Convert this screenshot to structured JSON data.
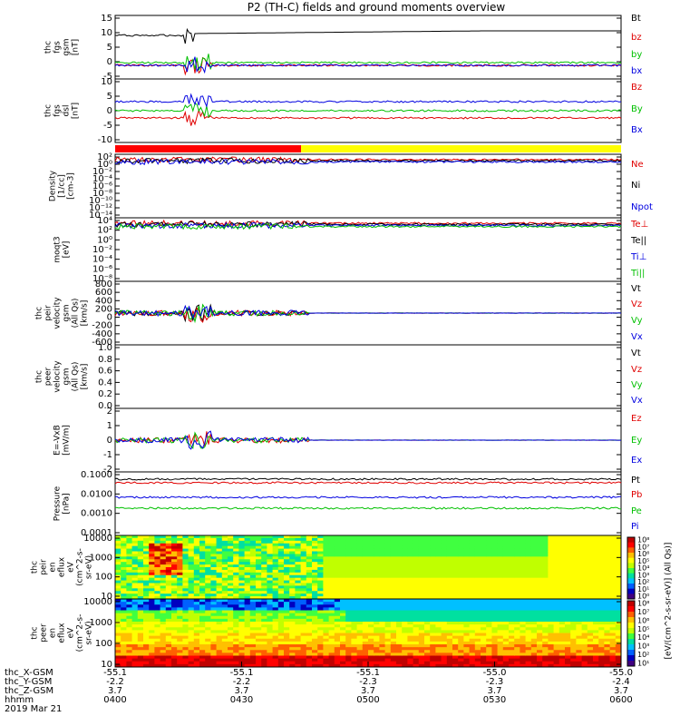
{
  "title": "P2 (TH-C) fields and ground moments overview",
  "chart_data": [
    {
      "type": "line",
      "panel": "fgs-gsm",
      "ylabel_lines": [
        "thc",
        "fgs",
        "gsm",
        "[nT]"
      ],
      "yticks": [
        "15",
        "10",
        "5",
        "0",
        "-5"
      ],
      "ylim": [
        -8,
        16
      ],
      "legend": [
        {
          "name": "Bt",
          "color": "#000000"
        },
        {
          "name": "bz",
          "color": "#e00000"
        },
        {
          "name": "by",
          "color": "#00c000"
        },
        {
          "name": "bx",
          "color": "#0000e0"
        }
      ]
    },
    {
      "type": "line",
      "panel": "fgs-dsl",
      "ylabel_lines": [
        "thc",
        "fgs",
        "dsl",
        "[nT]"
      ],
      "yticks": [
        "10",
        "5",
        "0",
        "-5",
        "-10"
      ],
      "ylim": [
        -12,
        10
      ],
      "legend": [
        {
          "name": "Bz",
          "color": "#e00000"
        },
        {
          "name": "By",
          "color": "#00c000"
        },
        {
          "name": "Bx",
          "color": "#0000e0"
        }
      ]
    },
    {
      "type": "line",
      "panel": "density",
      "ylabel_lines": [
        "Density",
        "[1/cc]",
        "[cm-3]"
      ],
      "yticks": [
        "10²",
        "10⁰",
        "10⁻²",
        "10⁻⁴",
        "10⁻⁶",
        "10⁻⁸",
        "10⁻¹⁰",
        "10⁻¹²",
        "10⁻¹⁴"
      ],
      "legend": [
        {
          "name": "Ne",
          "color": "#e00000"
        },
        {
          "name": "Ni",
          "color": "#000000"
        },
        {
          "name": "Npot",
          "color": "#0000e0"
        }
      ]
    },
    {
      "type": "line",
      "panel": "temperature",
      "ylabel_lines": [
        "moqt3",
        "[eV]"
      ],
      "yticks": [
        "10⁴",
        "10²",
        "10⁰",
        "10⁻²",
        "10⁻⁴",
        "10⁻⁶",
        "10⁻⁸"
      ],
      "legend": [
        {
          "name": "Te⊥",
          "color": "#e00000"
        },
        {
          "name": "Te||",
          "color": "#000000"
        },
        {
          "name": "Ti⊥",
          "color": "#0000e0"
        },
        {
          "name": "Ti||",
          "color": "#00c000"
        }
      ]
    },
    {
      "type": "line",
      "panel": "peir-velocity",
      "ylabel_lines": [
        "thc",
        "peir",
        "velocity",
        "gsm",
        "(All Qs)",
        "[km/s]"
      ],
      "yticks": [
        "800",
        "600",
        "400",
        "200",
        "0",
        "-200",
        "-400",
        "-600"
      ],
      "ylim": [
        -600,
        800
      ],
      "legend": [
        {
          "name": "Vt",
          "color": "#000000"
        },
        {
          "name": "Vz",
          "color": "#e00000"
        },
        {
          "name": "Vy",
          "color": "#00c000"
        },
        {
          "name": "Vx",
          "color": "#0000e0"
        }
      ]
    },
    {
      "type": "line",
      "panel": "peer-velocity",
      "ylabel_lines": [
        "thc",
        "peer",
        "velocity",
        "gsm",
        "(All Qs)",
        "[km/s]"
      ],
      "yticks": [
        "1.0",
        "0.8",
        "0.6",
        "0.4",
        "0.2",
        "0.0"
      ],
      "ylim": [
        0,
        1
      ],
      "legend": [
        {
          "name": "Vt",
          "color": "#000000"
        },
        {
          "name": "Vz",
          "color": "#e00000"
        },
        {
          "name": "Vy",
          "color": "#00c000"
        },
        {
          "name": "Vx",
          "color": "#0000e0"
        }
      ]
    },
    {
      "type": "line",
      "panel": "efield",
      "ylabel_lines": [
        "E=-VxB",
        "[mV/m]"
      ],
      "yticks": [
        "2",
        "1",
        "0",
        "-1",
        "-2"
      ],
      "ylim": [
        -2,
        2
      ],
      "legend": [
        {
          "name": "Ez",
          "color": "#e00000"
        },
        {
          "name": "Ey",
          "color": "#00c000"
        },
        {
          "name": "Ex",
          "color": "#0000e0"
        }
      ]
    },
    {
      "type": "line",
      "panel": "pressure",
      "ylabel_lines": [
        "Pressure",
        "[nPa]"
      ],
      "yticks": [
        "0.1000",
        "0.0100",
        "0.0010",
        "0.0001"
      ],
      "legend": [
        {
          "name": "Pt",
          "color": "#000000"
        },
        {
          "name": "Pb",
          "color": "#e00000"
        },
        {
          "name": "Pe",
          "color": "#00c000"
        },
        {
          "name": "Pi",
          "color": "#0000e0"
        }
      ]
    },
    {
      "type": "heatmap",
      "panel": "peir-eflux",
      "ylabel_lines": [
        "thc",
        "peir",
        "en",
        "eflux",
        "eV",
        "(cm^2-s-",
        "sr-eV)"
      ],
      "yticks": [
        "10000",
        "1000",
        "100",
        "10"
      ]
    },
    {
      "type": "heatmap",
      "panel": "peer-eflux",
      "ylabel_lines": [
        "thc",
        "peer",
        "en",
        "eflux",
        "eV",
        "(cm^2-s-",
        "sr-eV)"
      ],
      "yticks": [
        "10000",
        "1000",
        "100",
        "10"
      ]
    }
  ],
  "colorbar": {
    "upper_ticks": [
      "10⁸",
      "10⁷",
      "10⁶",
      "10⁵",
      "10⁴",
      "10³",
      "10²",
      "10¹",
      "10⁰"
    ],
    "lower_ticks": [
      "10⁸",
      "10⁷",
      "10⁶",
      "10⁵",
      "10⁴",
      "10³",
      "10²",
      "10¹"
    ],
    "label": "[eV/(cm^2-s-sr-eV)] (All Qs)]"
  },
  "xaxis": {
    "row_labels": [
      "thc_X-GSM",
      "thc_Y-GSM",
      "thc_Z-GSM",
      "hhmm",
      "2019 Mar 21"
    ],
    "ticks": [
      {
        "x": "-55.1",
        "y": "-2.2",
        "z": "3.7",
        "hhmm": "0400"
      },
      {
        "x": "-55.1",
        "y": "-2.2",
        "z": "3.7",
        "hhmm": "0430"
      },
      {
        "x": "-55.1",
        "y": "-2.3",
        "z": "3.7",
        "hhmm": "0500"
      },
      {
        "x": "-55.0",
        "y": "-2.3",
        "z": "3.7",
        "hhmm": "0530"
      },
      {
        "x": "-55.0",
        "y": "-2.4",
        "z": "3.7",
        "hhmm": "0600"
      }
    ]
  },
  "mode_bar": {
    "colors": [
      "#ff0000",
      "#ffff00"
    ]
  }
}
